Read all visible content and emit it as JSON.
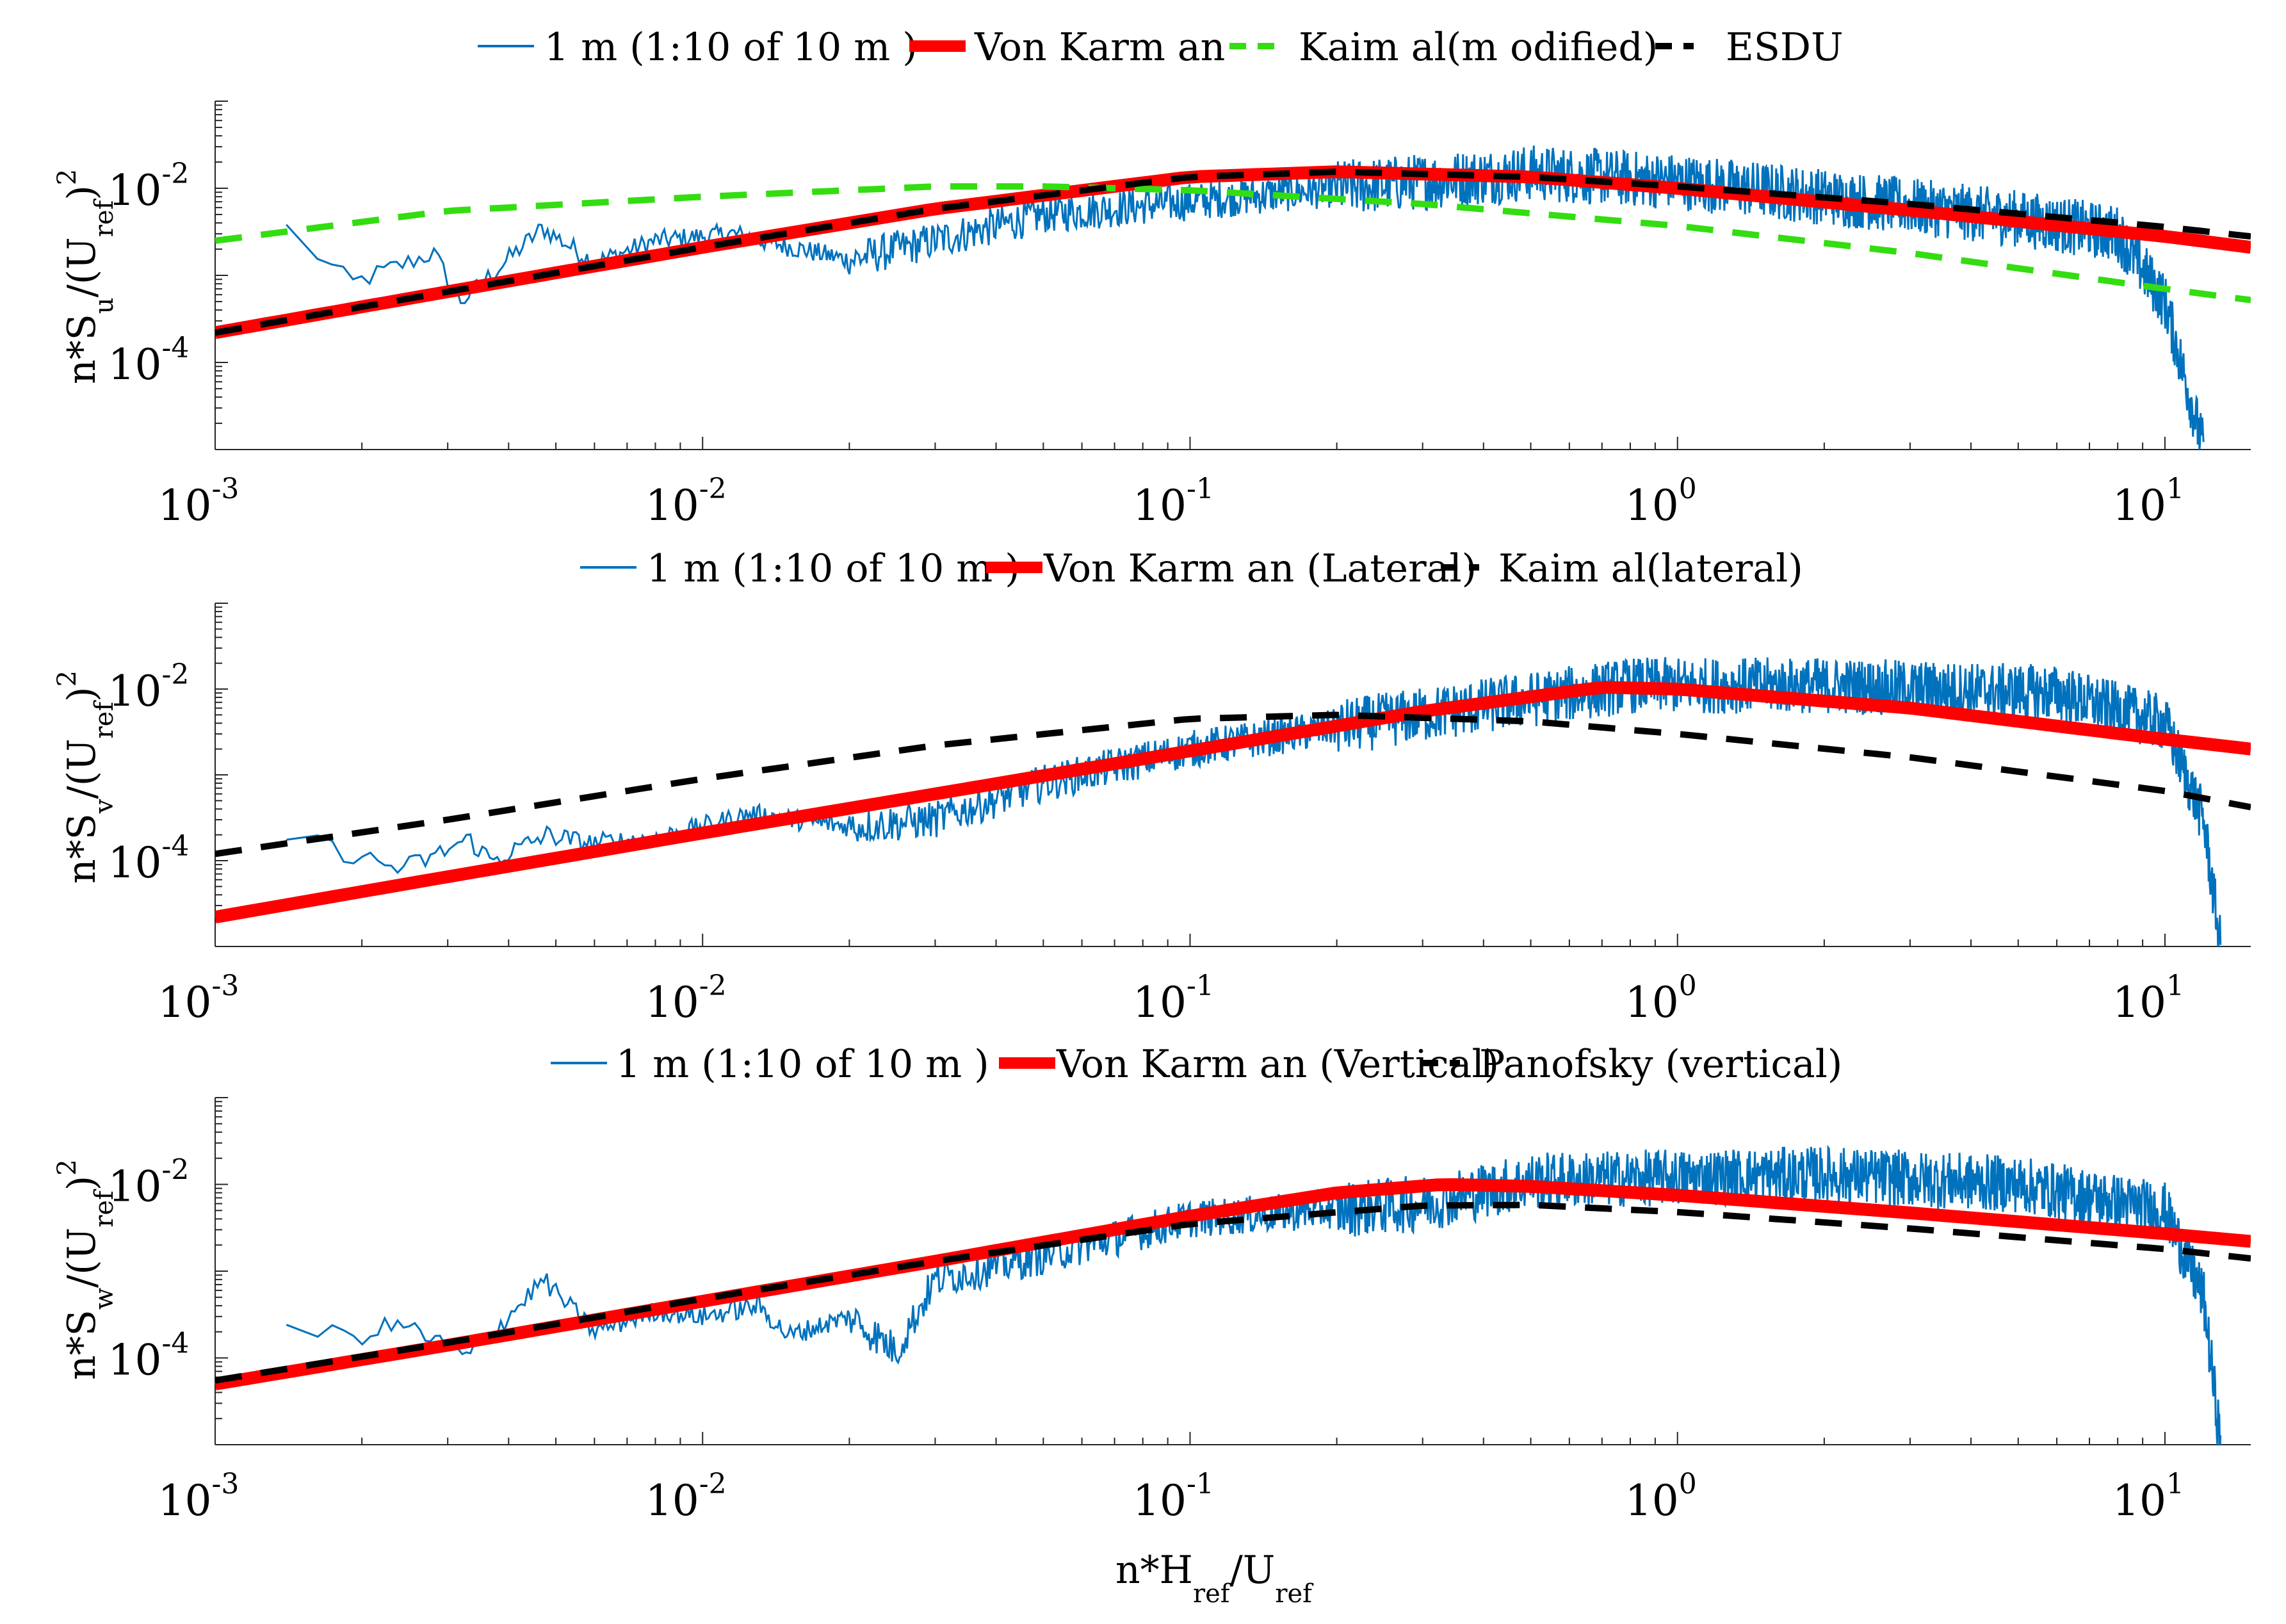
{
  "chart_data": [
    {
      "type": "line",
      "scale": "loglog",
      "ylabel": {
        "main": "n*S",
        "component": "u",
        "denom": "/(U",
        "ref": "ref",
        "close": ")",
        "power": "2"
      },
      "xlabel": "",
      "xlim": [
        0.001,
        15
      ],
      "ylim": [
        1e-05,
        0.1
      ],
      "xticks": [
        {
          "base": "10",
          "exp": "-3"
        },
        {
          "base": "10",
          "exp": "-2"
        },
        {
          "base": "10",
          "exp": "-1"
        },
        {
          "base": "10",
          "exp": "0"
        },
        {
          "base": "10",
          "exp": "1"
        }
      ],
      "yticks": [
        {
          "base": "10",
          "exp": "-4"
        },
        {
          "base": "10",
          "exp": "-2"
        }
      ],
      "series": [
        {
          "name": "1 m  (1:10 of 10 m )",
          "color": "#0072BD",
          "style": "solid",
          "kind": "measured",
          "x": [
            0.0014,
            0.0019,
            0.0028,
            0.0032,
            0.0047,
            0.006,
            0.008,
            0.0115,
            0.02,
            0.03,
            0.05,
            0.1,
            0.2,
            0.5,
            1,
            2,
            5,
            8,
            10,
            12
          ],
          "y": [
            0.0035,
            0.0008,
            0.0018,
            0.0005,
            0.0035,
            0.0014,
            0.0025,
            0.003,
            0.0015,
            0.0025,
            0.005,
            0.007,
            0.01,
            0.015,
            0.012,
            0.008,
            0.0045,
            0.003,
            0.0005,
            1e-05
          ]
        },
        {
          "name": "Von Karm an",
          "color": "#ff0000",
          "style": "solid",
          "kind": "model",
          "x": [
            0.001,
            0.003,
            0.01,
            0.03,
            0.1,
            0.2,
            0.5,
            1,
            3,
            10,
            15
          ],
          "y": [
            0.00022,
            0.00065,
            0.0021,
            0.0058,
            0.0135,
            0.0155,
            0.0135,
            0.01,
            0.0056,
            0.0028,
            0.0021
          ]
        },
        {
          "name": "Kaim al(m odified)",
          "color": "#33dd11",
          "style": "dashed",
          "kind": "model",
          "x": [
            0.001,
            0.003,
            0.01,
            0.03,
            0.05,
            0.1,
            0.3,
            1,
            3,
            10,
            15
          ],
          "y": [
            0.0025,
            0.0055,
            0.008,
            0.0105,
            0.0105,
            0.0095,
            0.0066,
            0.0037,
            0.0018,
            0.0007,
            0.00052
          ]
        },
        {
          "name": "ESDU",
          "color": "#000000",
          "style": "dashed",
          "kind": "model",
          "x": [
            0.001,
            0.003,
            0.01,
            0.03,
            0.1,
            0.2,
            0.5,
            1,
            3,
            10,
            15
          ],
          "y": [
            0.00022,
            0.00065,
            0.0021,
            0.0058,
            0.0135,
            0.0155,
            0.0135,
            0.0105,
            0.0066,
            0.0036,
            0.0028
          ]
        }
      ]
    },
    {
      "type": "line",
      "scale": "loglog",
      "ylabel": {
        "main": "n*S",
        "component": "v",
        "denom": "/(U",
        "ref": "ref",
        "close": ")",
        "power": "2"
      },
      "xlabel": "",
      "xlim": [
        0.001,
        15
      ],
      "ylim": [
        1e-05,
        0.1
      ],
      "xticks": [
        {
          "base": "10",
          "exp": "-3"
        },
        {
          "base": "10",
          "exp": "-2"
        },
        {
          "base": "10",
          "exp": "-1"
        },
        {
          "base": "10",
          "exp": "0"
        },
        {
          "base": "10",
          "exp": "1"
        }
      ],
      "yticks": [
        {
          "base": "10",
          "exp": "-4"
        },
        {
          "base": "10",
          "exp": "-2"
        }
      ],
      "series": [
        {
          "name": "1 m  (1:10 of 10 m )",
          "color": "#0072BD",
          "style": "solid",
          "kind": "measured",
          "x": [
            0.0014,
            0.0016,
            0.0024,
            0.0028,
            0.0033,
            0.0037,
            0.0048,
            0.0058,
            0.008,
            0.0125,
            0.02,
            0.03,
            0.05,
            0.1,
            0.3,
            0.8,
            2,
            6,
            10,
            12,
            13
          ],
          "y": [
            0.0002,
            0.00016,
            8e-05,
            0.00011,
            0.00018,
            0.0001,
            0.0002,
            0.00016,
            0.00018,
            0.00035,
            0.00025,
            0.0003,
            0.0008,
            0.002,
            0.005,
            0.011,
            0.011,
            0.009,
            0.004,
            0.0003,
            1e-05
          ]
        },
        {
          "name": "Von Karm an (Lateral)",
          "color": "#ff0000",
          "style": "solid",
          "kind": "model",
          "x": [
            0.001,
            0.003,
            0.01,
            0.03,
            0.1,
            0.3,
            0.7,
            1,
            3,
            10,
            15
          ],
          "y": [
            2.2e-05,
            6.5e-05,
            0.00021,
            0.0006,
            0.0019,
            0.0055,
            0.0105,
            0.01,
            0.006,
            0.0026,
            0.002
          ]
        },
        {
          "name": "Kaim al(lateral)",
          "color": "#000000",
          "style": "dashed",
          "kind": "model",
          "x": [
            0.001,
            0.003,
            0.01,
            0.03,
            0.1,
            0.2,
            0.5,
            1,
            3,
            10,
            15
          ],
          "y": [
            0.00012,
            0.0003,
            0.0009,
            0.0022,
            0.0045,
            0.005,
            0.0042,
            0.003,
            0.0016,
            0.00065,
            0.00042
          ]
        }
      ]
    },
    {
      "type": "line",
      "scale": "loglog",
      "ylabel": {
        "main": "n*S",
        "component": "w",
        "denom": "/(U",
        "ref": "ref",
        "close": ")",
        "power": "2"
      },
      "xlabel": {
        "main": "n*H",
        "ref1": "ref",
        "mid": "/U",
        "ref2": "ref"
      },
      "xlim": [
        0.001,
        15
      ],
      "ylim": [
        1e-05,
        0.1
      ],
      "xticks": [
        {
          "base": "10",
          "exp": "-3"
        },
        {
          "base": "10",
          "exp": "-2"
        },
        {
          "base": "10",
          "exp": "-1"
        },
        {
          "base": "10",
          "exp": "0"
        },
        {
          "base": "10",
          "exp": "1"
        }
      ],
      "yticks": [
        {
          "base": "10",
          "exp": "-4"
        },
        {
          "base": "10",
          "exp": "-2"
        }
      ],
      "series": [
        {
          "name": "1 m  (1:10 of 10 m )",
          "color": "#0072BD",
          "style": "solid",
          "kind": "measured",
          "x": [
            0.0014,
            0.0019,
            0.0024,
            0.0033,
            0.0042,
            0.0047,
            0.006,
            0.008,
            0.01,
            0.013,
            0.015,
            0.02,
            0.025,
            0.03,
            0.05,
            0.1,
            0.3,
            0.5,
            1,
            2,
            5,
            10,
            12,
            13
          ],
          "y": [
            0.00025,
            0.00017,
            0.00025,
            0.0001,
            0.0004,
            0.0008,
            0.0002,
            0.00035,
            0.0003,
            0.0004,
            0.00018,
            0.0003,
            0.00012,
            0.0008,
            0.0015,
            0.004,
            0.006,
            0.011,
            0.012,
            0.013,
            0.01,
            0.005,
            0.0005,
            1e-05
          ]
        },
        {
          "name": "Von Karm an (Vertical)",
          "color": "#ff0000",
          "style": "solid",
          "kind": "model",
          "x": [
            0.001,
            0.003,
            0.01,
            0.03,
            0.1,
            0.2,
            0.33,
            0.5,
            1,
            3,
            10,
            15
          ],
          "y": [
            5e-05,
            0.00014,
            0.00045,
            0.0013,
            0.0043,
            0.008,
            0.01,
            0.0095,
            0.0075,
            0.0047,
            0.0027,
            0.0022
          ]
        },
        {
          "name": "Panofsky (vertical)",
          "color": "#000000",
          "style": "dashed",
          "kind": "model",
          "x": [
            0.001,
            0.003,
            0.01,
            0.03,
            0.1,
            0.3,
            0.5,
            1,
            3,
            10,
            15
          ],
          "y": [
            5.5e-05,
            0.00015,
            0.00048,
            0.0013,
            0.0035,
            0.0057,
            0.0058,
            0.0048,
            0.0031,
            0.0018,
            0.0014
          ]
        }
      ]
    }
  ]
}
